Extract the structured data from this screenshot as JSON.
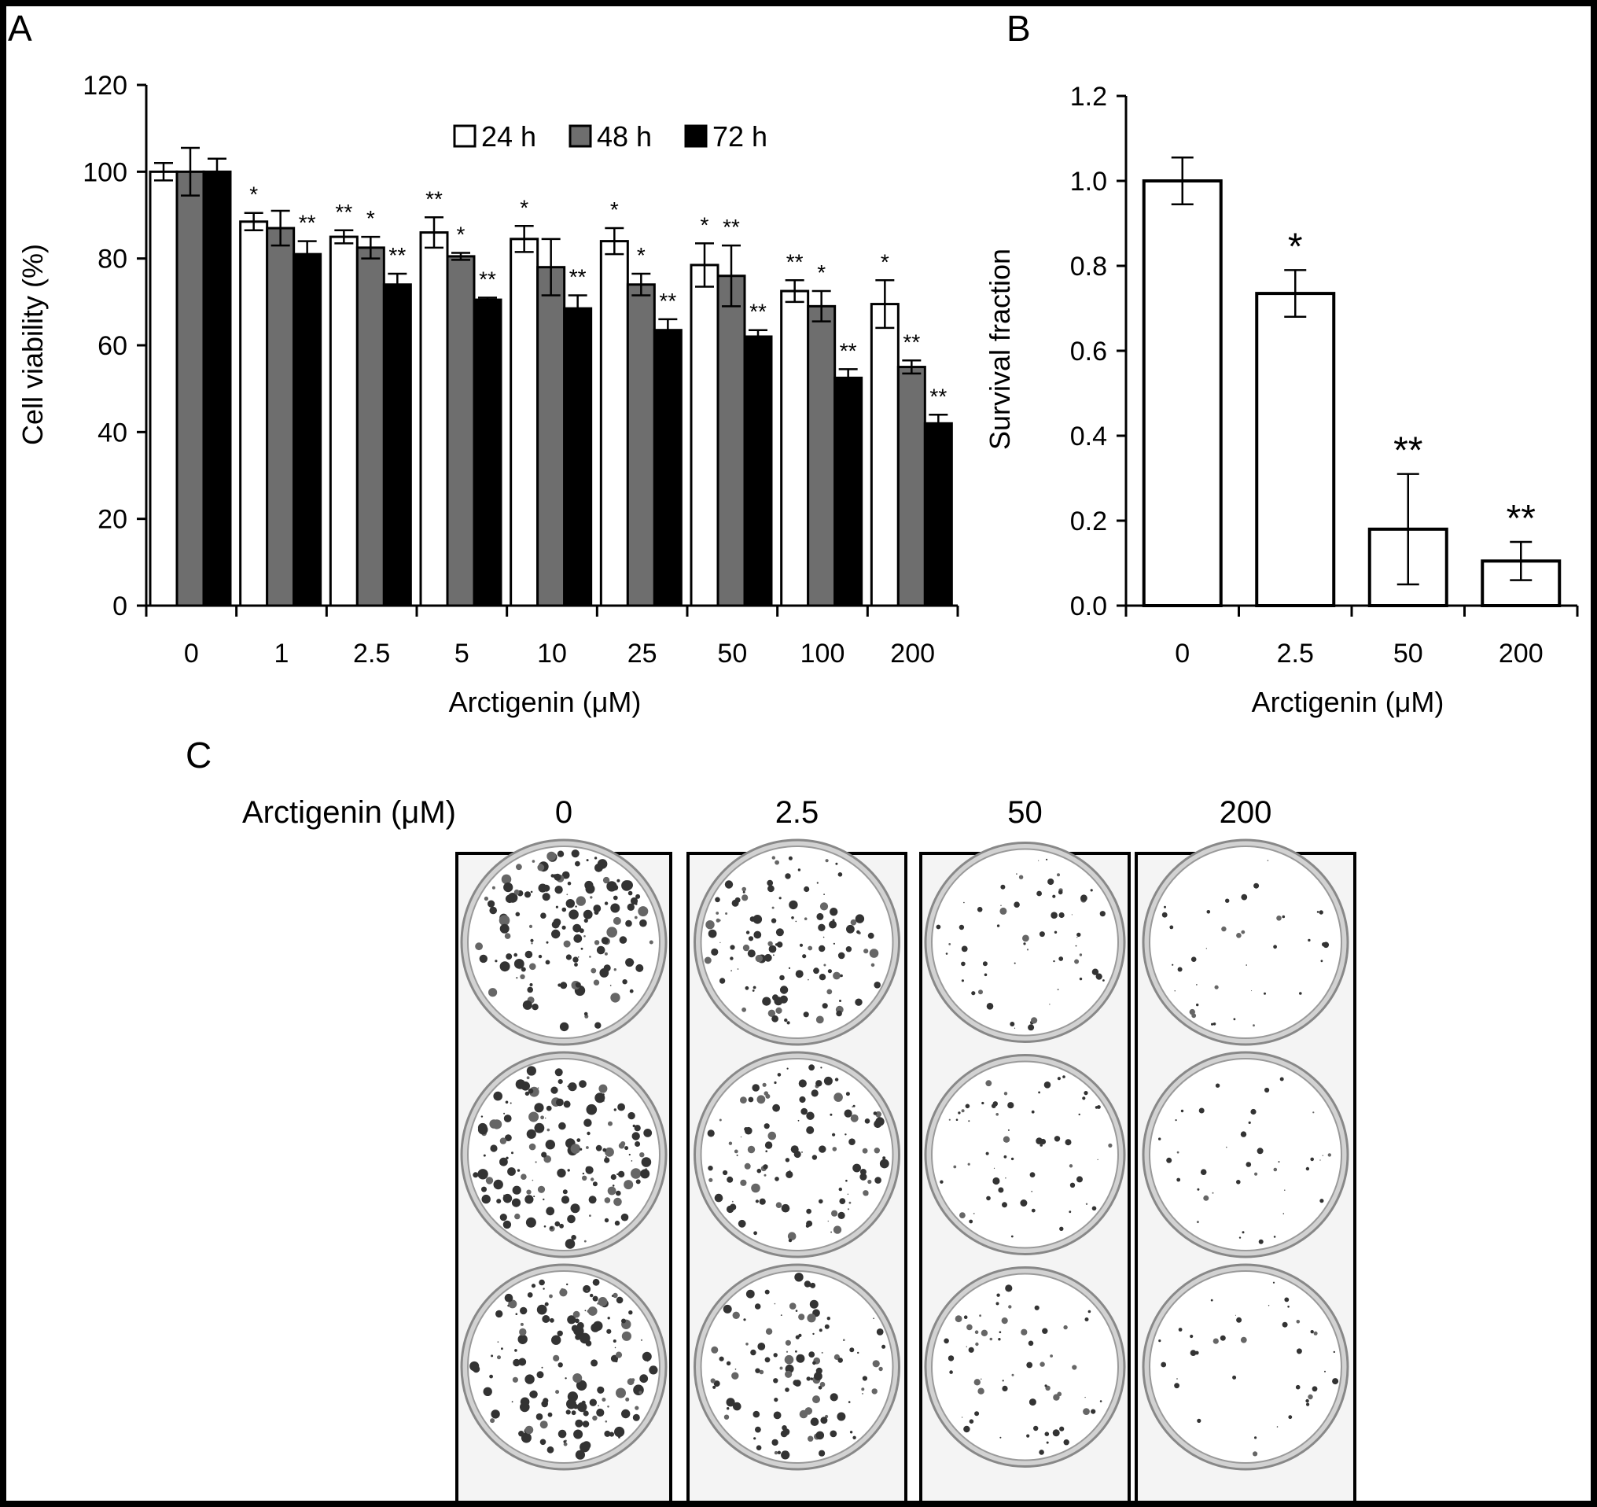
{
  "panels": {
    "a": "A",
    "b": "B",
    "c": "C"
  },
  "chart_data": [
    {
      "panel": "A",
      "type": "bar",
      "xlabel": "Arctigenin (μM)",
      "ylabel": "Cell viability (%)",
      "ylim": [
        0,
        120
      ],
      "yticks": [
        "0",
        "20",
        "40",
        "60",
        "80",
        "100",
        "120"
      ],
      "categories": [
        "0",
        "1",
        "2.5",
        "5",
        "10",
        "25",
        "50",
        "100",
        "200"
      ],
      "legend_position": "top-center",
      "series": [
        {
          "name": "24 h",
          "color": "#ffffff",
          "values": [
            100,
            88.5,
            85,
            86,
            84.5,
            84,
            78.5,
            72.5,
            69.5
          ],
          "errors": [
            2,
            2,
            1.5,
            3.5,
            3,
            3,
            5,
            2.5,
            5.5
          ],
          "significance": [
            "",
            "*",
            "**",
            "**",
            "*",
            "*",
            "*",
            "**",
            "*"
          ]
        },
        {
          "name": "48 h",
          "color": "#6e6e6e",
          "values": [
            100,
            87,
            82.5,
            80.5,
            78,
            74,
            76,
            69,
            55
          ],
          "errors": [
            5.5,
            4,
            2.5,
            0.8,
            6.5,
            2.5,
            7,
            3.5,
            1.5
          ],
          "significance": [
            "",
            "",
            "*",
            "*",
            "",
            "*",
            "**",
            "*",
            "**"
          ]
        },
        {
          "name": "72 h",
          "color": "#000000",
          "values": [
            100,
            81,
            74,
            70.5,
            68.5,
            63.5,
            62,
            52.5,
            42
          ],
          "errors": [
            3,
            3,
            2.5,
            0.5,
            3,
            2.5,
            1.5,
            2,
            2
          ],
          "significance": [
            "",
            "**",
            "**",
            "**",
            "**",
            "**",
            "**",
            "**",
            "**"
          ]
        }
      ]
    },
    {
      "panel": "B",
      "type": "bar",
      "xlabel": "Arctigenin (μM)",
      "ylabel": "Survival  fraction",
      "ylim": [
        0,
        1.2
      ],
      "yticks": [
        "0.0",
        "0.2",
        "0.4",
        "0.6",
        "0.8",
        "1.0",
        "1.2"
      ],
      "categories": [
        "0",
        "2.5",
        "50",
        "200"
      ],
      "values": [
        1.0,
        0.735,
        0.18,
        0.105
      ],
      "errors": [
        0.055,
        0.055,
        0.13,
        0.045
      ],
      "significance": [
        "",
        "*",
        "**",
        "**"
      ],
      "bar_color": "#ffffff"
    }
  ],
  "panel_c": {
    "row_label": "Arctigenin  (μM)",
    "columns": [
      {
        "label": "0",
        "density": 1.0
      },
      {
        "label": "2.5",
        "density": 0.75
      },
      {
        "label": "50",
        "density": 0.4
      },
      {
        "label": "200",
        "density": 0.25
      }
    ]
  }
}
